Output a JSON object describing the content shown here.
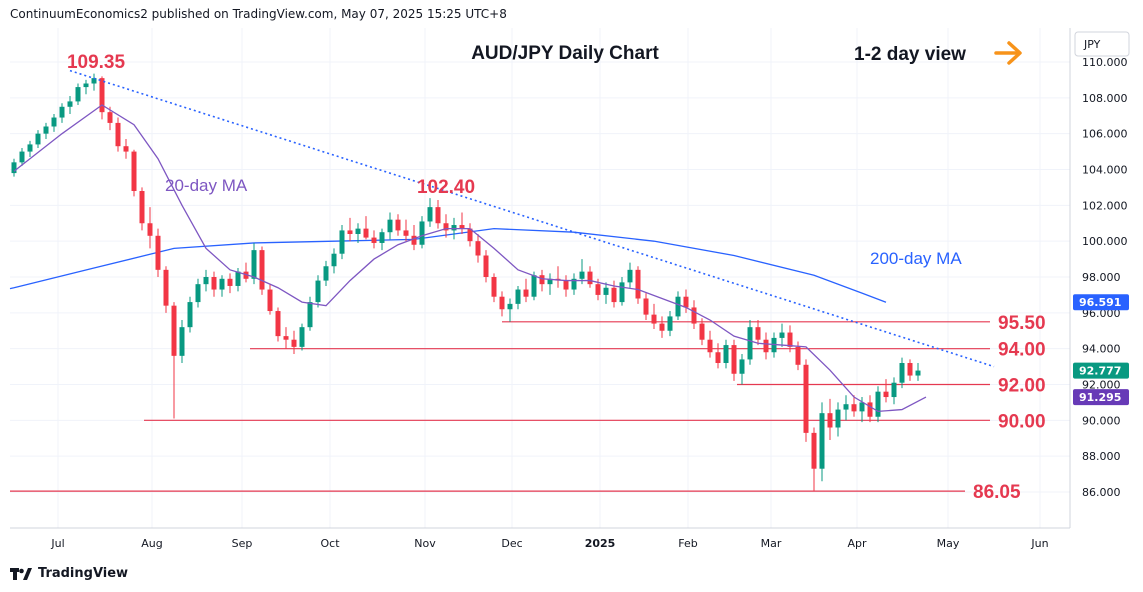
{
  "header": {
    "attribution": "ContinuumEconomics2 published on TradingView.com, May 07, 2025 15:25 UTC+8",
    "brand": "TradingView"
  },
  "chart_data": {
    "type": "candlestick",
    "title": "AUD/JPY Daily Chart",
    "view_label": "1-2 day view",
    "view_direction": "sideways",
    "currency_label": "JPY",
    "ylim": [
      84.5,
      111.5
    ],
    "y_ticks": [
      "110.000",
      "108.000",
      "106.000",
      "104.000",
      "102.000",
      "100.000",
      "98.000",
      "96.000",
      "94.000",
      "92.000",
      "90.000",
      "88.000",
      "86.000"
    ],
    "y_tick_values": [
      110,
      108,
      106,
      104,
      102,
      100,
      98,
      96,
      94,
      92,
      90,
      88,
      86
    ],
    "x_ticks": [
      "Jul",
      "Aug",
      "Sep",
      "Oct",
      "Nov",
      "Dec",
      "2025",
      "Feb",
      "Mar",
      "Apr",
      "May",
      "Jun"
    ],
    "peaks": [
      {
        "label": "109.35",
        "value": 109.35
      },
      {
        "label": "102.40",
        "value": 102.4
      }
    ],
    "levels": [
      {
        "label": "95.50",
        "value": 95.5
      },
      {
        "label": "94.00",
        "value": 94.0
      },
      {
        "label": "92.00",
        "value": 92.0
      },
      {
        "label": "90.00",
        "value": 90.0
      },
      {
        "label": "86.05",
        "value": 86.05
      }
    ],
    "ma_labels": {
      "ma20": "20-day MA",
      "ma200": "200-day MA"
    },
    "price_badges": [
      {
        "label": "96.591",
        "value": 96.591,
        "color": "#2962ff"
      },
      {
        "label": "92.777",
        "value": 92.777,
        "color": "#089981"
      },
      {
        "label": "91.295",
        "value": 91.295,
        "color": "#673ab7"
      }
    ],
    "colors": {
      "up": "#089981",
      "down": "#f23645",
      "ma20": "#7e57c2",
      "ma200": "#2962ff",
      "level": "#e53950",
      "trend": "#2962ff",
      "arrow": "#f7931a"
    },
    "ohlc": [
      [
        103.8,
        104.6,
        103.6,
        104.4
      ],
      [
        104.4,
        105.2,
        104.2,
        105.0
      ],
      [
        105.0,
        105.6,
        104.7,
        105.4
      ],
      [
        105.4,
        106.2,
        105.2,
        106.0
      ],
      [
        106.0,
        106.6,
        105.7,
        106.4
      ],
      [
        106.4,
        107.1,
        106.1,
        106.9
      ],
      [
        106.9,
        107.7,
        106.6,
        107.5
      ],
      [
        107.5,
        108.1,
        107.1,
        107.8
      ],
      [
        107.8,
        108.8,
        107.6,
        108.6
      ],
      [
        108.6,
        109.0,
        108.2,
        108.8
      ],
      [
        108.8,
        109.35,
        108.4,
        109.1
      ],
      [
        109.1,
        109.2,
        106.8,
        107.2
      ],
      [
        107.2,
        107.5,
        106.2,
        106.6
      ],
      [
        106.6,
        106.9,
        105.0,
        105.3
      ],
      [
        105.3,
        105.7,
        104.6,
        105.0
      ],
      [
        105.0,
        105.1,
        102.5,
        102.8
      ],
      [
        102.8,
        103.0,
        100.6,
        101.0
      ],
      [
        101.0,
        101.9,
        99.6,
        100.3
      ],
      [
        100.3,
        100.7,
        98.0,
        98.4
      ],
      [
        98.4,
        98.6,
        96.0,
        96.4
      ],
      [
        96.4,
        96.6,
        90.1,
        93.6
      ],
      [
        93.6,
        95.6,
        93.2,
        95.2
      ],
      [
        95.2,
        96.9,
        94.9,
        96.6
      ],
      [
        96.6,
        97.9,
        96.3,
        97.6
      ],
      [
        97.6,
        98.4,
        97.2,
        98.0
      ],
      [
        98.0,
        98.3,
        96.9,
        97.3
      ],
      [
        97.3,
        98.1,
        96.9,
        97.9
      ],
      [
        97.9,
        98.2,
        97.1,
        97.5
      ],
      [
        97.5,
        98.5,
        97.2,
        98.3
      ],
      [
        98.3,
        98.8,
        97.7,
        97.9
      ],
      [
        97.9,
        99.9,
        97.6,
        99.5
      ],
      [
        99.5,
        99.7,
        97.0,
        97.3
      ],
      [
        97.3,
        97.6,
        95.9,
        96.1
      ],
      [
        96.1,
        96.3,
        94.4,
        94.7
      ],
      [
        94.7,
        95.2,
        94.0,
        94.5
      ],
      [
        94.5,
        95.0,
        93.7,
        94.1
      ],
      [
        94.1,
        95.4,
        93.9,
        95.2
      ],
      [
        95.2,
        96.9,
        95.0,
        96.6
      ],
      [
        96.6,
        98.1,
        96.3,
        97.8
      ],
      [
        97.8,
        98.9,
        97.5,
        98.6
      ],
      [
        98.6,
        99.6,
        98.2,
        99.3
      ],
      [
        99.3,
        100.9,
        99.0,
        100.6
      ],
      [
        100.6,
        101.3,
        100.0,
        100.4
      ],
      [
        100.4,
        101.0,
        99.9,
        100.7
      ],
      [
        100.7,
        101.4,
        100.1,
        100.2
      ],
      [
        100.2,
        100.6,
        99.6,
        99.9
      ],
      [
        99.9,
        100.7,
        99.5,
        100.5
      ],
      [
        100.5,
        101.6,
        100.1,
        101.2
      ],
      [
        101.2,
        101.5,
        100.3,
        100.6
      ],
      [
        100.6,
        101.2,
        100.0,
        100.3
      ],
      [
        100.3,
        100.9,
        99.5,
        99.8
      ],
      [
        99.8,
        101.4,
        99.6,
        101.1
      ],
      [
        101.1,
        102.4,
        100.8,
        101.9
      ],
      [
        101.9,
        102.3,
        100.7,
        101.0
      ],
      [
        101.0,
        101.5,
        100.2,
        100.6
      ],
      [
        100.6,
        101.3,
        100.1,
        100.9
      ],
      [
        100.9,
        101.6,
        100.4,
        100.7
      ],
      [
        100.7,
        101.0,
        99.7,
        100.0
      ],
      [
        100.0,
        100.4,
        98.8,
        99.2
      ],
      [
        99.2,
        99.5,
        97.7,
        98.0
      ],
      [
        98.0,
        98.2,
        96.6,
        96.9
      ],
      [
        96.9,
        97.2,
        95.8,
        96.2
      ],
      [
        96.2,
        96.8,
        95.5,
        96.5
      ],
      [
        96.5,
        97.5,
        96.2,
        97.3
      ],
      [
        97.3,
        97.9,
        96.6,
        96.9
      ],
      [
        96.9,
        98.3,
        96.7,
        98.1
      ],
      [
        98.1,
        98.4,
        97.2,
        97.6
      ],
      [
        97.6,
        98.2,
        97.0,
        97.9
      ],
      [
        97.9,
        98.6,
        97.4,
        97.8
      ],
      [
        97.8,
        98.1,
        96.9,
        97.3
      ],
      [
        97.3,
        98.2,
        97.0,
        97.9
      ],
      [
        97.9,
        99.0,
        97.6,
        98.3
      ],
      [
        98.3,
        98.6,
        97.4,
        97.6
      ],
      [
        97.6,
        97.9,
        96.7,
        97.0
      ],
      [
        97.0,
        97.7,
        96.5,
        97.4
      ],
      [
        97.4,
        97.8,
        96.3,
        96.6
      ],
      [
        96.6,
        98.0,
        96.4,
        97.7
      ],
      [
        97.7,
        98.8,
        97.4,
        98.4
      ],
      [
        98.4,
        98.6,
        96.5,
        96.8
      ],
      [
        96.8,
        97.1,
        95.6,
        95.9
      ],
      [
        95.9,
        96.5,
        95.1,
        95.4
      ],
      [
        95.4,
        95.8,
        94.6,
        95.0
      ],
      [
        95.0,
        96.1,
        94.7,
        95.8
      ],
      [
        95.8,
        97.2,
        95.6,
        96.9
      ],
      [
        96.9,
        97.3,
        96.0,
        96.3
      ],
      [
        96.3,
        96.7,
        95.1,
        95.4
      ],
      [
        95.4,
        95.7,
        94.2,
        94.5
      ],
      [
        94.5,
        95.0,
        93.5,
        93.8
      ],
      [
        93.8,
        94.3,
        92.9,
        93.2
      ],
      [
        93.2,
        94.5,
        92.9,
        94.2
      ],
      [
        94.2,
        94.5,
        92.2,
        92.6
      ],
      [
        92.6,
        93.7,
        92.0,
        93.4
      ],
      [
        93.4,
        95.6,
        93.1,
        95.2
      ],
      [
        95.2,
        95.6,
        94.2,
        94.5
      ],
      [
        94.5,
        94.9,
        93.4,
        93.8
      ],
      [
        93.8,
        94.9,
        93.5,
        94.6
      ],
      [
        94.6,
        95.4,
        94.1,
        94.9
      ],
      [
        94.9,
        95.3,
        93.8,
        94.1
      ],
      [
        94.1,
        94.4,
        92.8,
        93.1
      ],
      [
        93.1,
        93.4,
        88.8,
        89.3
      ],
      [
        89.3,
        89.6,
        86.05,
        87.3
      ],
      [
        87.3,
        91.0,
        86.6,
        90.4
      ],
      [
        90.4,
        91.2,
        88.9,
        89.6
      ],
      [
        89.6,
        91.0,
        89.1,
        90.6
      ],
      [
        90.6,
        91.4,
        90.0,
        90.9
      ],
      [
        90.9,
        91.4,
        90.2,
        90.5
      ],
      [
        90.5,
        91.3,
        89.9,
        91.0
      ],
      [
        91.0,
        91.4,
        89.9,
        90.2
      ],
      [
        90.2,
        91.9,
        89.9,
        91.6
      ],
      [
        91.6,
        92.3,
        91.0,
        91.3
      ],
      [
        91.3,
        92.4,
        90.9,
        92.1
      ],
      [
        92.1,
        93.5,
        91.8,
        93.2
      ],
      [
        93.2,
        93.4,
        92.2,
        92.5
      ],
      [
        92.5,
        93.2,
        92.2,
        92.777
      ]
    ],
    "ma20": [
      [
        0,
        103.9
      ],
      [
        6,
        106.0
      ],
      [
        11,
        107.6
      ],
      [
        15,
        106.5
      ],
      [
        18,
        104.6
      ],
      [
        21,
        102.0
      ],
      [
        24,
        99.6
      ],
      [
        27,
        98.4
      ],
      [
        30,
        98.0
      ],
      [
        33,
        97.4
      ],
      [
        36,
        96.6
      ],
      [
        39,
        96.4
      ],
      [
        42,
        97.8
      ],
      [
        45,
        99.0
      ],
      [
        48,
        99.8
      ],
      [
        51,
        100.3
      ],
      [
        54,
        100.7
      ],
      [
        57,
        100.7
      ],
      [
        60,
        99.6
      ],
      [
        63,
        98.4
      ],
      [
        66,
        97.9
      ],
      [
        69,
        97.8
      ],
      [
        72,
        97.8
      ],
      [
        75,
        97.5
      ],
      [
        78,
        97.3
      ],
      [
        81,
        96.8
      ],
      [
        84,
        96.3
      ],
      [
        87,
        95.6
      ],
      [
        90,
        94.7
      ],
      [
        93,
        94.3
      ],
      [
        96,
        94.2
      ],
      [
        99,
        94.1
      ],
      [
        102,
        92.8
      ],
      [
        105,
        91.3
      ],
      [
        108,
        90.5
      ],
      [
        111,
        90.6
      ],
      [
        114,
        91.3
      ]
    ],
    "ma200": [
      [
        0,
        97.4
      ],
      [
        10,
        98.5
      ],
      [
        20,
        99.6
      ],
      [
        30,
        99.9
      ],
      [
        40,
        100.0
      ],
      [
        50,
        100.1
      ],
      [
        60,
        100.7
      ],
      [
        70,
        100.5
      ],
      [
        80,
        100.0
      ],
      [
        90,
        99.2
      ],
      [
        100,
        98.1
      ],
      [
        106,
        97.1
      ],
      [
        109,
        96.591
      ]
    ],
    "trendline": [
      [
        10,
        109.35
      ],
      [
        115,
        93.0
      ]
    ]
  }
}
